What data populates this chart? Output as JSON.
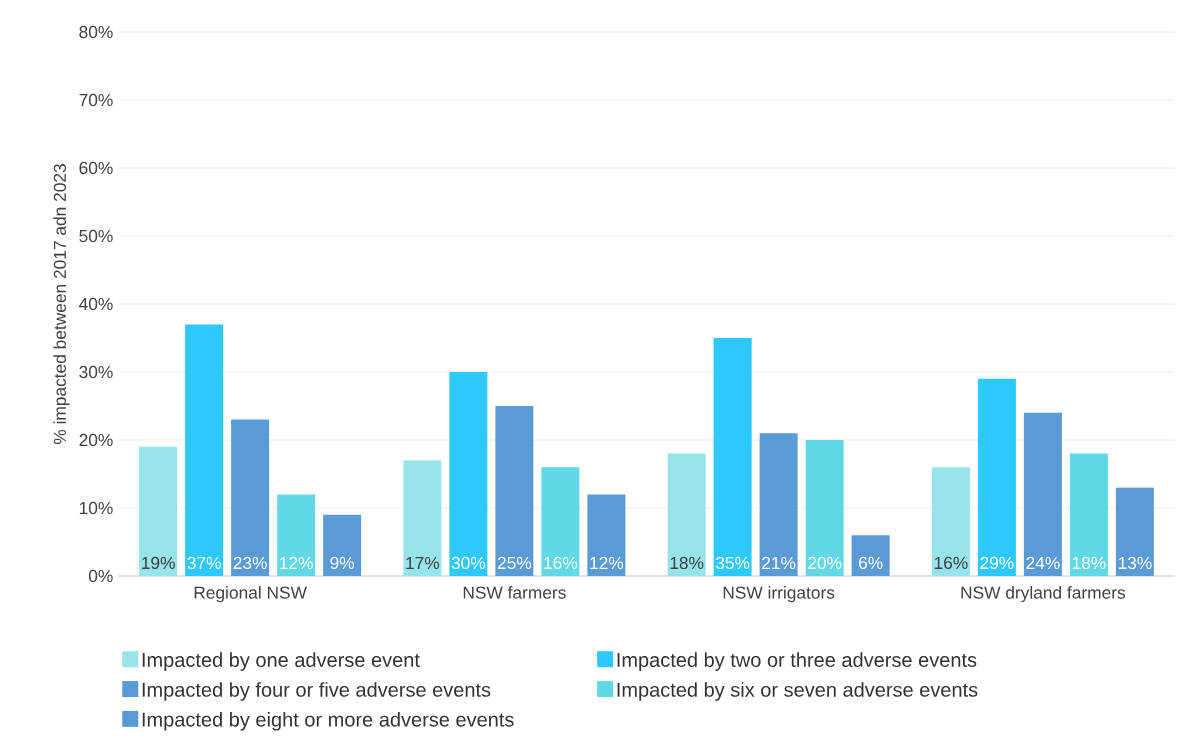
{
  "chart_data": {
    "type": "bar",
    "ylabel": "% impacted between 2017 adn 2023",
    "categories": [
      "Regional NSW",
      "NSW farmers",
      "NSW irrigators",
      "NSW dryland farmers"
    ],
    "series": [
      {
        "name": "Impacted by one adverse event",
        "color": "#97e3ea",
        "values": [
          19,
          17,
          18,
          16
        ],
        "value_labels": [
          "19%",
          "17%",
          "18%",
          "16%"
        ]
      },
      {
        "name": "Impacted by two or three adverse events",
        "color": "#2ec8fc",
        "values": [
          37,
          30,
          35,
          29
        ],
        "value_labels": [
          "37%",
          "30%",
          "35%",
          "29%"
        ]
      },
      {
        "name": "Impacted by four or five adverse events",
        "color": "#5b9bd5",
        "values": [
          23,
          25,
          21,
          24
        ],
        "value_labels": [
          "23%",
          "25%",
          "21%",
          "24%"
        ]
      },
      {
        "name": "Impacted by six or seven adverse events",
        "color": "#62d8e4",
        "values": [
          12,
          16,
          20,
          18
        ],
        "value_labels": [
          "12%",
          "16%",
          "20%",
          "18%"
        ]
      },
      {
        "name": "Impacted by eight or more adverse events",
        "color": "#5b9bd5",
        "values": [
          9,
          12,
          6,
          13
        ],
        "value_labels": [
          "9%",
          "12%",
          "6%",
          "13%"
        ]
      }
    ],
    "ylim": [
      0,
      80
    ],
    "yticks": [
      {
        "value": 0,
        "label": "0%"
      },
      {
        "value": 10,
        "label": "10%"
      },
      {
        "value": 20,
        "label": "20%"
      },
      {
        "value": 30,
        "label": "30%"
      },
      {
        "value": 40,
        "label": "40%"
      },
      {
        "value": 50,
        "label": "50%"
      },
      {
        "value": 60,
        "label": "60%"
      },
      {
        "value": 70,
        "label": "70%"
      },
      {
        "value": 80,
        "label": "80%"
      }
    ],
    "grid": "y",
    "legend": "bottom"
  }
}
